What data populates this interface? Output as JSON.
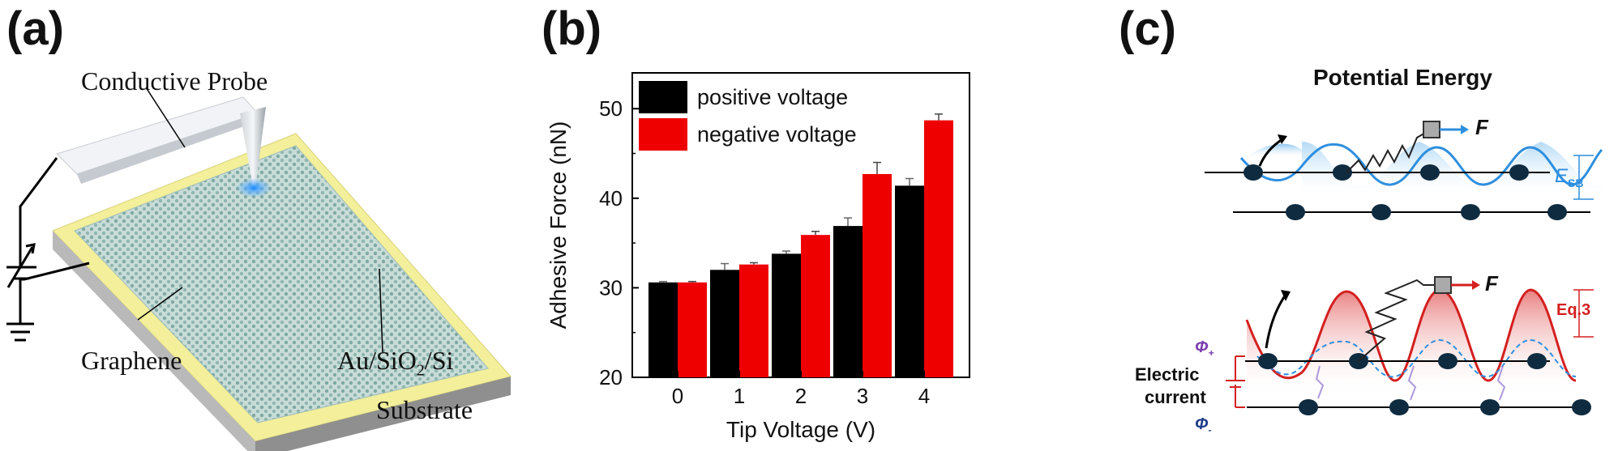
{
  "panels": {
    "a": {
      "label": "(a)",
      "probe_label": "Conductive Probe",
      "graphene_label": "Graphene",
      "substrate_label_1": "Au/SiO",
      "substrate_sub": "2",
      "substrate_label_2": "/Si",
      "substrate_label_3": "Substrate"
    },
    "b": {
      "label": "(b)"
    },
    "c": {
      "label": "(c)",
      "title": "Potential Energy",
      "force_symbol": "F",
      "esb_main": "E",
      "esb_sub": "SB",
      "eq_label": "Eq.3",
      "phi_plus": "Φ",
      "phi_plus_sub": "+",
      "phi_minus": "Φ",
      "phi_minus_sub": "-",
      "electric_label_1": "Electric",
      "electric_label_2": "current"
    }
  },
  "colors": {
    "positive": "#000000",
    "negative": "#ee0000",
    "substrate_yellow": "#f3ef9a",
    "graphene": "#a8c8c4",
    "wave_blue": "#2f8fde",
    "wave_red": "#d42020",
    "atom": "#0f2b40"
  },
  "chart_data": {
    "type": "bar",
    "categories": [
      "0",
      "1",
      "2",
      "3",
      "4"
    ],
    "series": [
      {
        "name": "positive voltage",
        "values": [
          30.6,
          32.0,
          33.8,
          36.9,
          41.4
        ],
        "errors": [
          0.1,
          0.7,
          0.3,
          0.9,
          0.8
        ]
      },
      {
        "name": "negative voltage",
        "values": [
          30.6,
          32.6,
          35.9,
          42.7,
          48.7
        ],
        "errors": [
          0.1,
          0.2,
          0.4,
          1.3,
          0.7
        ]
      }
    ],
    "xlabel": "Tip Voltage (V)",
    "ylabel": "Adhesive Force (nN)",
    "ylim": [
      20,
      54
    ],
    "yticks": [
      20,
      30,
      40,
      50
    ],
    "legend_position": "top-left"
  }
}
